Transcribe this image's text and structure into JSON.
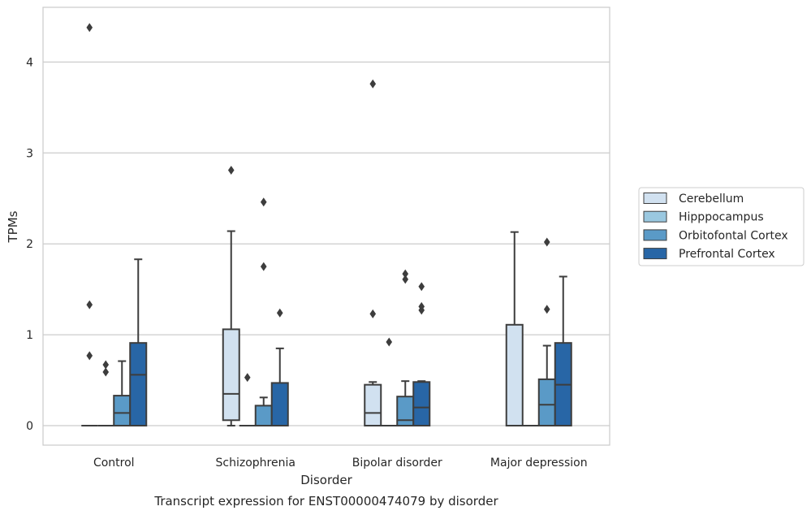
{
  "caption": "Transcript expression for ENST00000474079 by disorder",
  "chart_data": {
    "type": "box",
    "xlabel": "Disorder",
    "ylabel": "TPMs",
    "ylim": [
      -0.22,
      4.6
    ],
    "yticks": [
      0,
      1,
      2,
      3,
      4
    ],
    "grid": "horizontal",
    "legend_position": "center-right, outside plot",
    "categories": [
      "Control",
      "Schizophrenia",
      "Bipolar disorder",
      "Major depression"
    ],
    "series": [
      {
        "name": "Cerebellum",
        "color": "#d1e1f0",
        "boxes": [
          {
            "whislo": 0,
            "q1": 0,
            "med": 0,
            "q3": 0,
            "whishi": 0,
            "fliers": [
              0.77,
              1.33,
              4.38
            ]
          },
          {
            "whislo": 0,
            "q1": 0.06,
            "med": 0.35,
            "q3": 1.06,
            "whishi": 2.14,
            "fliers": [
              2.81
            ]
          },
          {
            "whislo": 0,
            "q1": 0,
            "med": 0.14,
            "q3": 0.45,
            "whishi": 0.48,
            "fliers": [
              1.23,
              3.76
            ]
          },
          {
            "whislo": 0,
            "q1": 0,
            "med": 0,
            "q3": 1.11,
            "whishi": 2.13,
            "fliers": []
          }
        ]
      },
      {
        "name": "Hipppocampus",
        "color": "#9ac8e0",
        "boxes": [
          {
            "whislo": 0,
            "q1": 0,
            "med": 0,
            "q3": 0,
            "whishi": 0,
            "fliers": [
              0.59,
              0.67
            ]
          },
          {
            "whislo": 0,
            "q1": 0,
            "med": 0,
            "q3": 0,
            "whishi": 0,
            "fliers": [
              0.53
            ]
          },
          {
            "whislo": 0,
            "q1": 0,
            "med": 0,
            "q3": 0,
            "whishi": 0,
            "fliers": [
              0.92
            ]
          },
          {
            "whislo": 0,
            "q1": 0,
            "med": 0,
            "q3": 0,
            "whishi": 0,
            "fliers": []
          }
        ]
      },
      {
        "name": "Orbitofontal Cortex",
        "color": "#5a9ac7",
        "boxes": [
          {
            "whislo": 0,
            "q1": 0,
            "med": 0.14,
            "q3": 0.33,
            "whishi": 0.71,
            "fliers": []
          },
          {
            "whislo": 0,
            "q1": 0,
            "med": 0,
            "q3": 0.22,
            "whishi": 0.31,
            "fliers": [
              1.75,
              2.46
            ]
          },
          {
            "whislo": 0,
            "q1": 0,
            "med": 0.06,
            "q3": 0.32,
            "whishi": 0.49,
            "fliers": [
              1.61,
              1.67
            ]
          },
          {
            "whislo": 0,
            "q1": 0,
            "med": 0.23,
            "q3": 0.51,
            "whishi": 0.88,
            "fliers": [
              1.28,
              2.02
            ]
          }
        ]
      },
      {
        "name": "Prefrontal Cortex",
        "color": "#2866a6",
        "boxes": [
          {
            "whislo": 0,
            "q1": 0,
            "med": 0.56,
            "q3": 0.91,
            "whishi": 1.83,
            "fliers": []
          },
          {
            "whislo": 0,
            "q1": 0,
            "med": 0,
            "q3": 0.47,
            "whishi": 0.85,
            "fliers": [
              1.24
            ]
          },
          {
            "whislo": 0,
            "q1": 0,
            "med": 0.2,
            "q3": 0.48,
            "whishi": 0.49,
            "fliers": [
              1.27,
              1.31,
              1.53
            ]
          },
          {
            "whislo": 0,
            "q1": 0,
            "med": 0.45,
            "q3": 0.91,
            "whishi": 1.64,
            "fliers": []
          }
        ]
      }
    ]
  }
}
